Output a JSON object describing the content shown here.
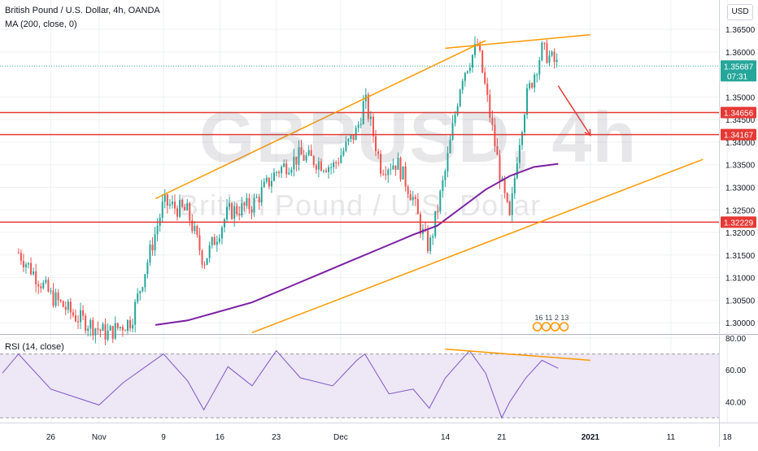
{
  "header": {
    "instrument_title": "British Pound / U.S. Dollar, 4h, OANDA",
    "ma_indicator_label": "MA (200, close, 0)",
    "rsi_indicator_label": "RSI (14, close)",
    "currency_label": "USD"
  },
  "watermark": {
    "symbol": "GBPUSD, 4h",
    "description": "British Pound / U.S. Dollar"
  },
  "events_badge_text": "16 11 2 13",
  "colors": {
    "candle_up": "#26a69a",
    "candle_down": "#ef5350",
    "ma_line": "#7b1fa2",
    "rsi_line": "#7e57c2",
    "rsi_band": "#ede7f6",
    "horizontal_levels": "#e53935",
    "trendlines": "#ff9800",
    "arrow": "#e53935",
    "last_price_tag": "#26a69a"
  },
  "chart_data": [
    {
      "type": "candlestick",
      "title": "British Pound / U.S. Dollar, 4h, OANDA",
      "x_ticks": [
        "26",
        "Nov",
        "9",
        "16",
        "23",
        "Dec",
        "14",
        "21",
        "2021",
        "11",
        "18"
      ],
      "y_ticks": [
        1.3,
        1.305,
        1.31,
        1.315,
        1.32,
        1.325,
        1.33,
        1.335,
        1.34,
        1.345,
        1.35,
        1.36,
        1.365
      ],
      "ylim": [
        1.2975,
        1.3715
      ],
      "grid": true,
      "current_price": 1.35687,
      "countdown": "07:31",
      "horizontal_levels": [
        1.34656,
        1.34167,
        1.32229
      ],
      "ma_label": "MA (200, close, 0)",
      "ma_points": [
        {
          "x": "2020-11-08",
          "y": 1.2995
        },
        {
          "x": "2020-11-12",
          "y": 1.3005
        },
        {
          "x": "2020-11-16",
          "y": 1.3025
        },
        {
          "x": "2020-11-20",
          "y": 1.3045
        },
        {
          "x": "2020-11-24",
          "y": 1.3075
        },
        {
          "x": "2020-11-28",
          "y": 1.3105
        },
        {
          "x": "2020-12-02",
          "y": 1.3135
        },
        {
          "x": "2020-12-06",
          "y": 1.3165
        },
        {
          "x": "2020-12-10",
          "y": 1.3195
        },
        {
          "x": "2020-12-13",
          "y": 1.3215
        },
        {
          "x": "2020-12-16",
          "y": 1.3255
        },
        {
          "x": "2020-12-19",
          "y": 1.3295
        },
        {
          "x": "2020-12-22",
          "y": 1.3325
        },
        {
          "x": "2020-12-25",
          "y": 1.3345
        },
        {
          "x": "2020-12-28",
          "y": 1.3352
        }
      ],
      "close_path": [
        {
          "x": "2020-10-22",
          "y": 1.3155
        },
        {
          "x": "2020-10-26",
          "y": 1.306
        },
        {
          "x": "2020-10-29",
          "y": 1.3015
        },
        {
          "x": "2020-11-02",
          "y": 1.2975
        },
        {
          "x": "2020-11-05",
          "y": 1.3005
        },
        {
          "x": "2020-11-09",
          "y": 1.3265
        },
        {
          "x": "2020-11-12",
          "y": 1.3245
        },
        {
          "x": "2020-11-14",
          "y": 1.3135
        },
        {
          "x": "2020-11-17",
          "y": 1.3245
        },
        {
          "x": "2020-11-20",
          "y": 1.326
        },
        {
          "x": "2020-11-23",
          "y": 1.3335
        },
        {
          "x": "2020-11-26",
          "y": 1.337
        },
        {
          "x": "2020-11-30",
          "y": 1.3345
        },
        {
          "x": "2020-12-03",
          "y": 1.3425
        },
        {
          "x": "2020-12-04",
          "y": 1.3495
        },
        {
          "x": "2020-12-06",
          "y": 1.3345
        },
        {
          "x": "2020-12-08",
          "y": 1.3355
        },
        {
          "x": "2020-12-10",
          "y": 1.3275
        },
        {
          "x": "2020-12-11",
          "y": 1.3205
        },
        {
          "x": "2020-12-12",
          "y": 1.3165
        },
        {
          "x": "2020-12-14",
          "y": 1.3335
        },
        {
          "x": "2020-12-16",
          "y": 1.3545
        },
        {
          "x": "2020-12-18",
          "y": 1.3615
        },
        {
          "x": "2020-12-19",
          "y": 1.3515
        },
        {
          "x": "2020-12-21",
          "y": 1.3305
        },
        {
          "x": "2020-12-22",
          "y": 1.3225
        },
        {
          "x": "2020-12-23",
          "y": 1.3385
        },
        {
          "x": "2020-12-24",
          "y": 1.3495
        },
        {
          "x": "2020-12-26",
          "y": 1.3605
        },
        {
          "x": "2020-12-28",
          "y": 1.35687
        }
      ],
      "trendlines": [
        {
          "from": {
            "x": "2020-11-08",
            "y": 1.3275
          },
          "to": {
            "x": "2020-12-19",
            "y": 1.3625
          }
        },
        {
          "from": {
            "x": "2020-11-20",
            "y": 1.2978
          },
          "to": {
            "x": "2021-01-15",
            "y": 1.3362
          }
        },
        {
          "from": {
            "x": "2020-12-14",
            "y": 1.3608
          },
          "to": {
            "x": "2021-01-01",
            "y": 1.3638
          }
        }
      ],
      "arrow": {
        "from": {
          "x": "2020-12-28",
          "y": 1.3525
        },
        "to": {
          "x": "2021-01-01",
          "y": 1.3415
        }
      }
    },
    {
      "type": "line",
      "title": "RSI (14, close)",
      "y_ticks": [
        40,
        60,
        80
      ],
      "ylim": [
        27,
        82
      ],
      "band": [
        30,
        70
      ],
      "grid": true,
      "series": [
        {
          "name": "RSI (14, close)",
          "points": [
            {
              "x": "2020-10-20",
              "y": 58
            },
            {
              "x": "2020-10-22",
              "y": 70
            },
            {
              "x": "2020-10-26",
              "y": 48
            },
            {
              "x": "2020-10-29",
              "y": 43
            },
            {
              "x": "2020-11-01",
              "y": 38
            },
            {
              "x": "2020-11-04",
              "y": 52
            },
            {
              "x": "2020-11-09",
              "y": 70
            },
            {
              "x": "2020-11-12",
              "y": 53
            },
            {
              "x": "2020-11-14",
              "y": 35
            },
            {
              "x": "2020-11-17",
              "y": 62
            },
            {
              "x": "2020-11-20",
              "y": 50
            },
            {
              "x": "2020-11-23",
              "y": 72
            },
            {
              "x": "2020-11-26",
              "y": 55
            },
            {
              "x": "2020-11-30",
              "y": 50
            },
            {
              "x": "2020-12-03",
              "y": 66
            },
            {
              "x": "2020-12-04",
              "y": 70
            },
            {
              "x": "2020-12-07",
              "y": 45
            },
            {
              "x": "2020-12-10",
              "y": 48
            },
            {
              "x": "2020-12-12",
              "y": 36
            },
            {
              "x": "2020-12-14",
              "y": 55
            },
            {
              "x": "2020-12-17",
              "y": 72
            },
            {
              "x": "2020-12-19",
              "y": 58
            },
            {
              "x": "2020-12-21",
              "y": 30
            },
            {
              "x": "2020-12-22",
              "y": 40
            },
            {
              "x": "2020-12-24",
              "y": 55
            },
            {
              "x": "2020-12-26",
              "y": 66
            },
            {
              "x": "2020-12-28",
              "y": 61
            }
          ]
        }
      ],
      "divergence_line": {
        "from": {
          "x": "2020-12-14",
          "y": 73
        },
        "to": {
          "x": "2021-01-01",
          "y": 66
        }
      }
    }
  ]
}
